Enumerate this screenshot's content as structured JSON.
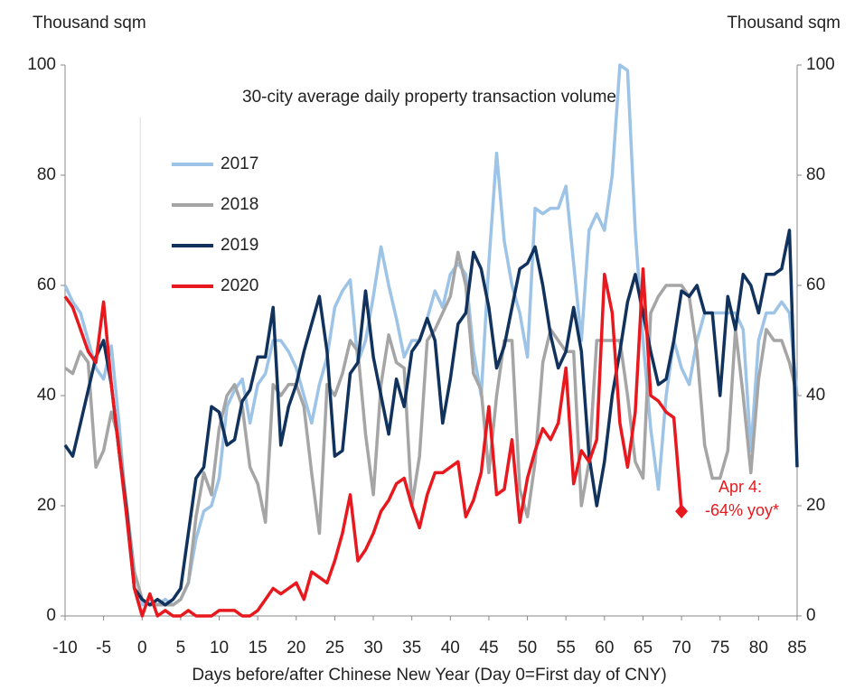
{
  "chart_data": {
    "type": "line",
    "title": "30-city average daily property transaction volume",
    "ylabel": "Thousand sqm",
    "y2label": "Thousand sqm",
    "xlabel": "Days before/after Chinese New Year (Day 0=First day of CNY)",
    "annotations": [
      "Apr 4:",
      "-64% yoy*"
    ],
    "xlim": [
      -10,
      85
    ],
    "ylim": [
      0,
      100
    ],
    "xticks": [
      -10,
      -5,
      0,
      5,
      10,
      15,
      20,
      25,
      30,
      35,
      40,
      45,
      50,
      55,
      60,
      65,
      70,
      75,
      80,
      85
    ],
    "yticks": [
      0,
      20,
      40,
      60,
      80,
      100
    ],
    "legend": "upper left",
    "x": [
      -10,
      -9,
      -8,
      -7,
      -6,
      -5,
      -4,
      -3,
      -2,
      -1,
      0,
      1,
      2,
      3,
      4,
      5,
      6,
      7,
      8,
      9,
      10,
      11,
      12,
      13,
      14,
      15,
      16,
      17,
      18,
      19,
      20,
      21,
      22,
      23,
      24,
      25,
      26,
      27,
      28,
      29,
      30,
      31,
      32,
      33,
      34,
      35,
      36,
      37,
      38,
      39,
      40,
      41,
      42,
      43,
      44,
      45,
      46,
      47,
      48,
      49,
      50,
      51,
      52,
      53,
      54,
      55,
      56,
      57,
      58,
      59,
      60,
      61,
      62,
      63,
      64,
      65,
      66,
      67,
      68,
      69,
      70,
      71,
      72,
      73,
      74,
      75,
      76,
      77,
      78,
      79,
      80,
      81,
      82,
      83,
      84,
      85
    ],
    "series": [
      {
        "name": "2017",
        "color": "#9dc3e6",
        "values": [
          60,
          57,
          55,
          50,
          45,
          43,
          49,
          35,
          18,
          5,
          2,
          3,
          2,
          3,
          2,
          3,
          6,
          14,
          19,
          20,
          25,
          38,
          41,
          43,
          35,
          42,
          44,
          50,
          50,
          48,
          45,
          40,
          35,
          42,
          47,
          56,
          59,
          61,
          46,
          50,
          58,
          67,
          60,
          54,
          47,
          50,
          50,
          54,
          59,
          56,
          62,
          64,
          62,
          48,
          40,
          64,
          84,
          68,
          60,
          55,
          47,
          74,
          73,
          74,
          74,
          78,
          64,
          50,
          70,
          73,
          70,
          80,
          100,
          99,
          70,
          50,
          34,
          23,
          40,
          50,
          45,
          42,
          50,
          55,
          55,
          55,
          55,
          55,
          52,
          30,
          50,
          55,
          55,
          57,
          55,
          40
        ]
      },
      {
        "name": "2018",
        "color": "#a5a5a5",
        "values": [
          45,
          44,
          48,
          46,
          27,
          30,
          37,
          32,
          20,
          8,
          3,
          2,
          2,
          2,
          2,
          3,
          6,
          18,
          26,
          22,
          34,
          40,
          42,
          38,
          27,
          24,
          17,
          42,
          40,
          42,
          42,
          38,
          26,
          15,
          42,
          40,
          44,
          50,
          48,
          33,
          22,
          42,
          51,
          46,
          45,
          20,
          29,
          50,
          52,
          55,
          58,
          66,
          60,
          44,
          41,
          26,
          40,
          50,
          50,
          23,
          18,
          28,
          46,
          52,
          50,
          48,
          48,
          20,
          28,
          50,
          50,
          50,
          50,
          40,
          28,
          25,
          55,
          58,
          60,
          60,
          60,
          58,
          48,
          31,
          25,
          25,
          30,
          52,
          40,
          26,
          43,
          52,
          50,
          50,
          46,
          40
        ]
      },
      {
        "name": "2019",
        "color": "#10325c",
        "values": [
          31,
          29,
          35,
          41,
          47,
          50,
          42,
          30,
          19,
          5,
          3,
          2,
          3,
          2,
          3,
          5,
          15,
          25,
          27,
          38,
          37,
          31,
          32,
          39,
          41,
          47,
          47,
          56,
          31,
          38,
          42,
          48,
          53,
          58,
          48,
          29,
          30,
          44,
          46,
          59,
          47,
          40,
          33,
          43,
          38,
          48,
          50,
          54,
          50,
          35,
          43,
          53,
          55,
          66,
          63,
          56,
          45,
          49,
          56,
          63,
          64,
          67,
          60,
          51,
          45,
          48,
          56,
          48,
          29,
          20,
          28,
          40,
          48,
          57,
          62,
          55,
          48,
          42,
          43,
          50,
          59,
          58,
          60,
          55,
          55,
          40,
          58,
          52,
          62,
          60,
          55,
          62,
          62,
          63,
          70,
          27
        ]
      },
      {
        "name": "2020",
        "color": "#e8191e",
        "values": [
          58,
          56,
          52,
          48,
          46,
          57,
          42,
          30,
          18,
          5,
          0,
          4,
          0,
          1,
          0,
          0,
          1,
          0,
          0,
          0,
          1,
          1,
          1,
          0,
          0,
          1,
          3,
          5,
          4,
          5,
          6,
          3,
          8,
          7,
          6,
          10,
          15,
          22,
          10,
          12,
          15,
          19,
          21,
          24,
          25,
          20,
          16,
          22,
          26,
          26,
          27,
          28,
          18,
          21,
          26,
          38,
          22,
          23,
          32,
          17,
          25,
          30,
          34,
          32,
          35,
          45,
          24,
          30,
          28,
          32,
          62,
          55,
          35,
          27,
          37,
          63,
          40,
          39,
          37,
          36,
          19,
          null,
          null,
          null,
          null,
          null,
          null,
          null,
          null,
          null,
          null,
          null,
          null,
          null,
          null,
          null
        ]
      }
    ]
  }
}
